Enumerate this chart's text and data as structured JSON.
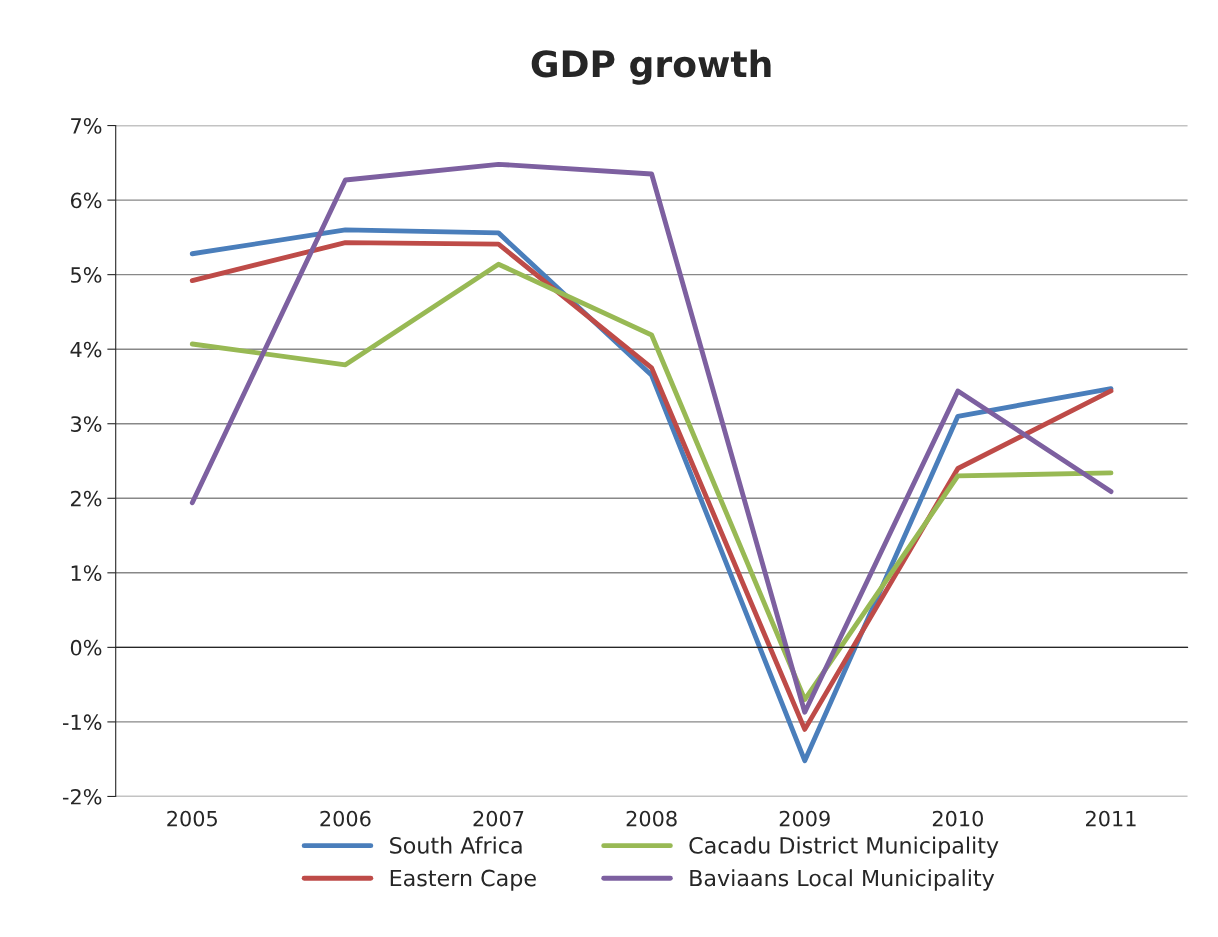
{
  "chart_data": {
    "type": "line",
    "title": "GDP growth",
    "categories": [
      "2005",
      "2006",
      "2007",
      "2008",
      "2009",
      "2010",
      "2011"
    ],
    "series": [
      {
        "name": "South Africa",
        "color": "#4a7ebb",
        "values": [
          5.28,
          5.6,
          5.56,
          3.65,
          -1.52,
          3.1,
          3.47
        ]
      },
      {
        "name": "Eastern Cape",
        "color": "#be4b48",
        "values": [
          4.92,
          5.43,
          5.41,
          3.75,
          -1.1,
          2.4,
          3.44
        ]
      },
      {
        "name": "Cacadu District Municipality",
        "color": "#98b954",
        "values": [
          4.07,
          3.79,
          5.14,
          4.19,
          -0.7,
          2.3,
          2.34
        ]
      },
      {
        "name": "Baviaans Local Municipality",
        "color": "#7d60a0",
        "values": [
          1.94,
          6.27,
          6.48,
          6.35,
          -0.87,
          3.44,
          2.09
        ]
      }
    ],
    "ylim": [
      -2,
      7
    ],
    "yticks": [
      {
        "value": -2,
        "label": "-2%"
      },
      {
        "value": -1,
        "label": "-1%"
      },
      {
        "value": 0,
        "label": "0%"
      },
      {
        "value": 1,
        "label": "1%"
      },
      {
        "value": 2,
        "label": "2%"
      },
      {
        "value": 3,
        "label": "3%"
      },
      {
        "value": 4,
        "label": "4%"
      },
      {
        "value": 5,
        "label": "5%"
      },
      {
        "value": 6,
        "label": "6%"
      },
      {
        "value": 7,
        "label": "7%"
      }
    ],
    "grid": "y",
    "legend": "bottom",
    "marker": "none",
    "line_style": "solid"
  }
}
